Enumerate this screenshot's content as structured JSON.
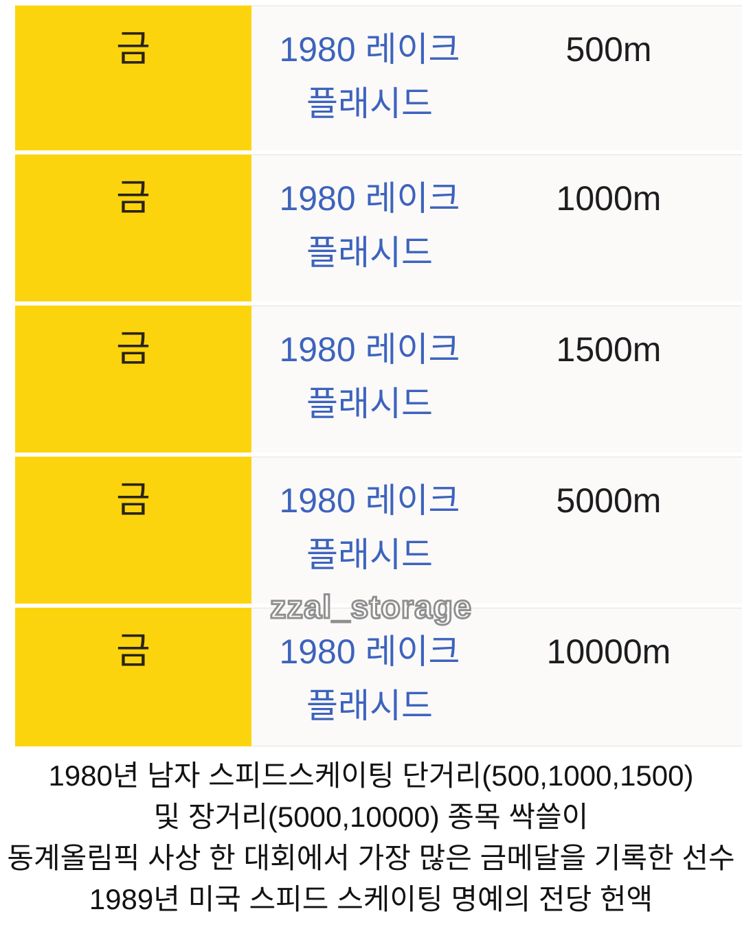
{
  "table": {
    "rows": [
      {
        "medal": "금",
        "event_line1": "1980 레이크",
        "event_line2": "플래시드",
        "distance": "500m"
      },
      {
        "medal": "금",
        "event_line1": "1980 레이크",
        "event_line2": "플래시드",
        "distance": "1000m"
      },
      {
        "medal": "금",
        "event_line1": "1980 레이크",
        "event_line2": "플래시드",
        "distance": "1500m"
      },
      {
        "medal": "금",
        "event_line1": "1980 레이크",
        "event_line2": "플래시드",
        "distance": "5000m"
      },
      {
        "medal": "금",
        "event_line1": "1980 레이크",
        "event_line2": "플래시드",
        "distance": "10000m"
      }
    ]
  },
  "watermark": "zzal_storage",
  "caption": {
    "lines": [
      "1980년 남자 스피드스케이팅 단거리(500,1000,1500)",
      "및 장거리(5000,10000) 종목 싹쓸이",
      "동계올림픽 사상 한 대회에서 가장 많은 금메달을 기록한 선수",
      "1989년 미국 스피드 스케이팅 명예의 전당 헌액"
    ]
  },
  "colors": {
    "yellow": "#fcd40e",
    "medal_text": "#2b2416",
    "link_blue": "#3d63bd",
    "text_dark": "#1d1d1f",
    "separator": "#e3e1df",
    "watermark_gray": "#8f8f8f",
    "caption_text": "#121212",
    "cell_bg": "#fbfaf9"
  }
}
